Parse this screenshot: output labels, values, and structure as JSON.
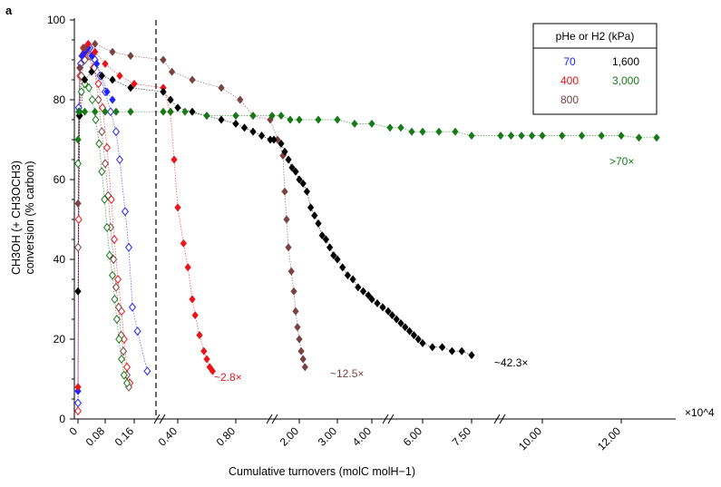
{
  "chart_data": {
    "type": "scatter",
    "panel_label": "a",
    "ylabel_line1": "CH3OH (+ CH3OCH3)",
    "ylabel_line2": "conversion (% carbon)",
    "xlabel": "Cumulative turnovers (molC molH−1)",
    "x_multiplier": "×10^4",
    "ylim": [
      0,
      100
    ],
    "yticks": [
      "0",
      "20",
      "40",
      "60",
      "80",
      "100"
    ],
    "x_axis_break_note": "broken x axis with four segments",
    "xticks": [
      "0",
      "0.08",
      "0.16",
      "0.40",
      "0.80",
      "2.00",
      "3.00",
      "4.00",
      "6.00",
      "7.50",
      "10.00",
      "12.00"
    ],
    "legend": {
      "title": "pHe or H2 (kPa)",
      "entries": [
        {
          "label": "70",
          "color": "#2222ff"
        },
        {
          "label": "1,600",
          "color": "#000000"
        },
        {
          "label": "400",
          "color": "#e8141a"
        },
        {
          "label": "3,000",
          "color": "#177a17"
        },
        {
          "label": "800",
          "color": "#7b4242"
        }
      ]
    },
    "annotations": [
      {
        "text": "~2.8×",
        "color": "#e8141a"
      },
      {
        "text": "~12.5×",
        "color": "#7b4242"
      },
      {
        "text": "~42.3×",
        "color": "#000000"
      },
      {
        "text": ">70×",
        "color": "#177a17"
      }
    ],
    "series": [
      {
        "group": "pHe",
        "pressure": "70",
        "color": "#2222ff",
        "filled": false,
        "points": [
          [
            0.0,
            4
          ],
          [
            0.002,
            78
          ],
          [
            0.008,
            89
          ],
          [
            0.02,
            92
          ],
          [
            0.035,
            93
          ],
          [
            0.05,
            90
          ],
          [
            0.065,
            86
          ],
          [
            0.08,
            82
          ],
          [
            0.095,
            77
          ],
          [
            0.11,
            72
          ],
          [
            0.12,
            65
          ],
          [
            0.135,
            52
          ],
          [
            0.145,
            43
          ],
          [
            0.155,
            28
          ],
          [
            0.163,
            22
          ],
          [
            0.172,
            12
          ]
        ]
      },
      {
        "group": "pHe",
        "pressure": "400",
        "color": "#e8141a",
        "filled": false,
        "points": [
          [
            0.0,
            2
          ],
          [
            0.002,
            50
          ],
          [
            0.006,
            86
          ],
          [
            0.012,
            91
          ],
          [
            0.02,
            92
          ],
          [
            0.03,
            91
          ],
          [
            0.045,
            88
          ],
          [
            0.06,
            84
          ],
          [
            0.072,
            78
          ],
          [
            0.085,
            68
          ],
          [
            0.097,
            55
          ],
          [
            0.105,
            45
          ],
          [
            0.115,
            35
          ],
          [
            0.125,
            27
          ],
          [
            0.132,
            20
          ],
          [
            0.14,
            13
          ],
          [
            0.148,
            9
          ]
        ]
      },
      {
        "group": "pHe",
        "pressure": "800",
        "color": "#7b4242",
        "filled": false,
        "points": [
          [
            0.0,
            43
          ],
          [
            0.004,
            76
          ],
          [
            0.01,
            86
          ],
          [
            0.02,
            90
          ],
          [
            0.035,
            91
          ],
          [
            0.048,
            88
          ],
          [
            0.06,
            80
          ],
          [
            0.07,
            72
          ],
          [
            0.08,
            64
          ],
          [
            0.088,
            56
          ],
          [
            0.095,
            48
          ],
          [
            0.103,
            40
          ],
          [
            0.11,
            33
          ],
          [
            0.117,
            28
          ],
          [
            0.124,
            21
          ],
          [
            0.13,
            17
          ],
          [
            0.14,
            11
          ],
          [
            0.145,
            8
          ]
        ]
      },
      {
        "group": "pHe",
        "pressure": "3,000",
        "color": "#177a17",
        "filled": false,
        "points": [
          [
            0.0,
            64
          ],
          [
            0.004,
            77
          ],
          [
            0.01,
            82
          ],
          [
            0.02,
            84
          ],
          [
            0.032,
            83
          ],
          [
            0.042,
            80
          ],
          [
            0.052,
            75
          ],
          [
            0.062,
            69
          ],
          [
            0.07,
            62
          ],
          [
            0.078,
            55
          ],
          [
            0.085,
            48
          ],
          [
            0.092,
            41
          ],
          [
            0.1,
            36
          ],
          [
            0.106,
            30
          ],
          [
            0.112,
            25
          ],
          [
            0.118,
            20
          ],
          [
            0.125,
            15
          ],
          [
            0.132,
            11
          ],
          [
            0.14,
            9
          ]
        ]
      },
      {
        "group": "pH2",
        "pressure": "70",
        "color": "#2222ff",
        "filled": true,
        "points": [
          [
            0.0,
            7
          ],
          [
            0.002,
            77
          ],
          [
            0.006,
            88
          ],
          [
            0.012,
            91
          ],
          [
            0.02,
            92
          ],
          [
            0.03,
            93
          ],
          [
            0.04,
            91
          ],
          [
            0.055,
            89
          ],
          [
            0.07,
            86
          ],
          [
            0.085,
            82
          ],
          [
            0.1,
            80
          ]
        ]
      },
      {
        "group": "pH2",
        "pressure": "400",
        "color": "#e8141a",
        "filled": true,
        "points": [
          [
            0.0,
            8
          ],
          [
            0.005,
            88
          ],
          [
            0.015,
            93
          ],
          [
            0.03,
            94
          ],
          [
            0.05,
            92
          ],
          [
            0.08,
            89
          ],
          [
            0.12,
            86
          ],
          [
            0.16,
            84
          ],
          [
            0.2,
            83
          ],
          [
            0.3,
            77
          ],
          [
            0.35,
            65
          ],
          [
            0.4,
            53
          ],
          [
            0.44,
            44
          ],
          [
            0.47,
            38
          ],
          [
            0.5,
            30
          ],
          [
            0.52,
            26
          ],
          [
            0.55,
            21
          ],
          [
            0.58,
            17
          ],
          [
            0.6,
            15
          ],
          [
            0.62,
            13
          ],
          [
            0.64,
            12
          ]
        ]
      },
      {
        "group": "pH2",
        "pressure": "800",
        "color": "#7b4242",
        "filled": true,
        "points": [
          [
            0.0,
            54
          ],
          [
            0.005,
            88
          ],
          [
            0.02,
            93
          ],
          [
            0.05,
            94
          ],
          [
            0.1,
            92
          ],
          [
            0.15,
            91
          ],
          [
            0.2,
            90
          ],
          [
            0.32,
            87
          ],
          [
            0.5,
            85
          ],
          [
            0.7,
            83
          ],
          [
            0.85,
            80
          ],
          [
            1.0,
            76
          ],
          [
            1.2,
            75
          ],
          [
            1.4,
            70
          ],
          [
            1.55,
            66
          ],
          [
            1.6,
            57
          ],
          [
            1.65,
            50
          ],
          [
            1.7,
            43
          ],
          [
            1.78,
            37
          ],
          [
            1.85,
            32
          ],
          [
            1.9,
            27
          ],
          [
            1.95,
            23
          ],
          [
            2.0,
            20
          ],
          [
            2.05,
            17
          ],
          [
            2.1,
            15
          ],
          [
            2.15,
            13
          ]
        ]
      },
      {
        "group": "pH2",
        "pressure": "1,600",
        "color": "#000000",
        "filled": true,
        "points": [
          [
            0.0,
            32
          ],
          [
            0.005,
            76
          ],
          [
            0.02,
            85
          ],
          [
            0.04,
            87
          ],
          [
            0.07,
            86
          ],
          [
            0.1,
            85
          ],
          [
            0.15,
            83
          ],
          [
            0.2,
            82
          ],
          [
            0.3,
            80
          ],
          [
            0.4,
            78
          ],
          [
            0.5,
            77
          ],
          [
            0.6,
            76
          ],
          [
            0.7,
            75
          ],
          [
            0.8,
            74
          ],
          [
            0.9,
            73
          ],
          [
            1.0,
            72
          ],
          [
            1.1,
            71
          ],
          [
            1.2,
            70
          ],
          [
            1.3,
            70
          ],
          [
            1.5,
            69
          ],
          [
            1.6,
            67
          ],
          [
            1.7,
            65
          ],
          [
            1.8,
            63
          ],
          [
            1.9,
            62
          ],
          [
            2.0,
            60
          ],
          [
            2.1,
            59
          ],
          [
            2.2,
            57
          ],
          [
            2.3,
            53
          ],
          [
            2.4,
            51
          ],
          [
            2.5,
            49
          ],
          [
            2.6,
            46
          ],
          [
            2.7,
            45
          ],
          [
            2.8,
            43
          ],
          [
            2.9,
            41
          ],
          [
            3.0,
            40
          ],
          [
            3.15,
            38
          ],
          [
            3.3,
            36
          ],
          [
            3.45,
            35
          ],
          [
            3.6,
            33
          ],
          [
            3.75,
            32
          ],
          [
            3.9,
            31
          ],
          [
            4.0,
            30
          ],
          [
            4.15,
            29
          ],
          [
            4.3,
            28
          ],
          [
            4.45,
            27
          ],
          [
            4.6,
            26
          ],
          [
            4.8,
            25
          ],
          [
            5.0,
            24
          ],
          [
            5.2,
            23
          ],
          [
            5.4,
            22
          ],
          [
            5.6,
            21
          ],
          [
            5.8,
            20
          ],
          [
            6.0,
            19
          ],
          [
            6.3,
            18
          ],
          [
            6.6,
            18
          ],
          [
            6.9,
            17
          ],
          [
            7.2,
            17
          ],
          [
            7.5,
            16
          ]
        ]
      },
      {
        "group": "pH2",
        "pressure": "3,000",
        "color": "#177a17",
        "filled": true,
        "points": [
          [
            0.0,
            70
          ],
          [
            0.003,
            77
          ],
          [
            0.02,
            77
          ],
          [
            0.05,
            77
          ],
          [
            0.08,
            77
          ],
          [
            0.11,
            77
          ],
          [
            0.15,
            77
          ],
          [
            0.2,
            77
          ],
          [
            0.3,
            77
          ],
          [
            0.45,
            77
          ],
          [
            0.6,
            76
          ],
          [
            0.8,
            76
          ],
          [
            1.0,
            76
          ],
          [
            1.25,
            76
          ],
          [
            1.5,
            76
          ],
          [
            1.75,
            75
          ],
          [
            2.0,
            75
          ],
          [
            2.5,
            75
          ],
          [
            3.0,
            75
          ],
          [
            3.5,
            74
          ],
          [
            4.0,
            74
          ],
          [
            4.5,
            73
          ],
          [
            5.0,
            73
          ],
          [
            5.5,
            72
          ],
          [
            6.0,
            72
          ],
          [
            6.5,
            72
          ],
          [
            7.0,
            72
          ],
          [
            7.5,
            71
          ],
          [
            8.0,
            71
          ],
          [
            8.5,
            71
          ],
          [
            9.0,
            71
          ],
          [
            9.5,
            71
          ],
          [
            10.0,
            71
          ],
          [
            10.5,
            71
          ],
          [
            11.0,
            71
          ],
          [
            11.5,
            71
          ],
          [
            12.0,
            71
          ],
          [
            12.5,
            70.5
          ],
          [
            13.0,
            70.5
          ]
        ]
      }
    ]
  }
}
